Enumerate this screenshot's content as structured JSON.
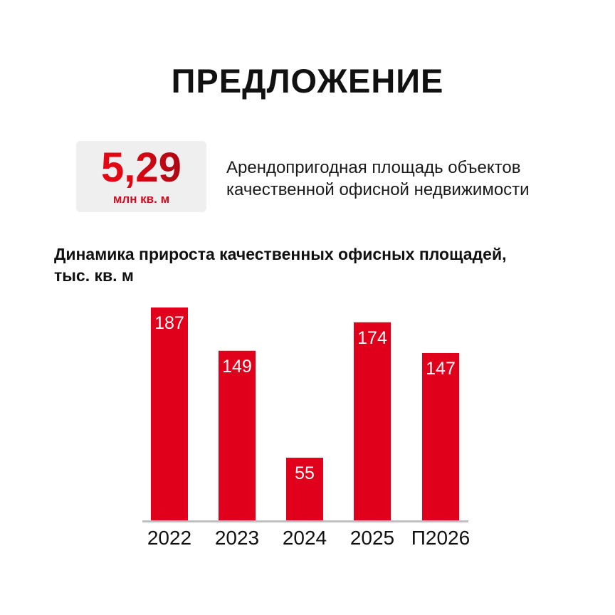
{
  "title": "ПРЕДЛОЖЕНИЕ",
  "kpi": {
    "value": "5,29",
    "unit": "млн кв. м",
    "description_line1": "Арендопригодная площадь объектов",
    "description_line2": "качественной офисной недвижимости"
  },
  "colors": {
    "accent": "#e0001b",
    "kpi_gradient_end": "#8e0a14",
    "baseline": "#c0c0c0",
    "box_bg": "#efefef"
  },
  "chart_data": {
    "type": "bar",
    "title_line1": "Динамика прироста качественных офисных площадей,",
    "title_line2": "тыс. кв. м",
    "categories": [
      "2022",
      "2023",
      "2024",
      "2025",
      "П2026"
    ],
    "values": [
      187,
      149,
      55,
      174,
      147
    ],
    "ylim": [
      0,
      187
    ],
    "grid": false,
    "legend": "none"
  }
}
